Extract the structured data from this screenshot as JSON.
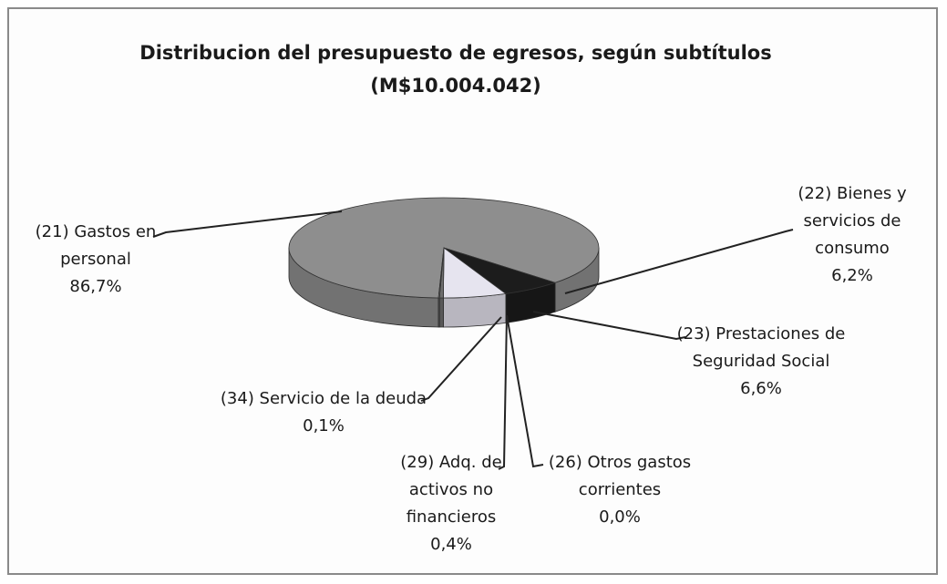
{
  "chart_data": {
    "type": "pie",
    "title": "Distribucion del presupuesto de egresos, según subtítulos",
    "subtitle": "(M$10.004.042)",
    "categories": [
      "(21) Gastos en personal",
      "(22) Bienes y servicios de consumo",
      "(23) Prestaciones de Seguridad Social",
      "(26) Otros gastos corrientes",
      "(29) Adq. de activos no financieros",
      "(34) Servicio de la deuda"
    ],
    "values": [
      86.7,
      6.2,
      6.6,
      0.0,
      0.4,
      0.1
    ],
    "value_labels": [
      "86,7%",
      "6,2%",
      "6,6%",
      "0,0%",
      "0,4%",
      "0,1%"
    ],
    "colors": [
      "#8e8e8e",
      "#1c1c1c",
      "#e6e4ef",
      "#7a7a7a",
      "#6e6e6e",
      "#9a9a9a"
    ]
  }
}
